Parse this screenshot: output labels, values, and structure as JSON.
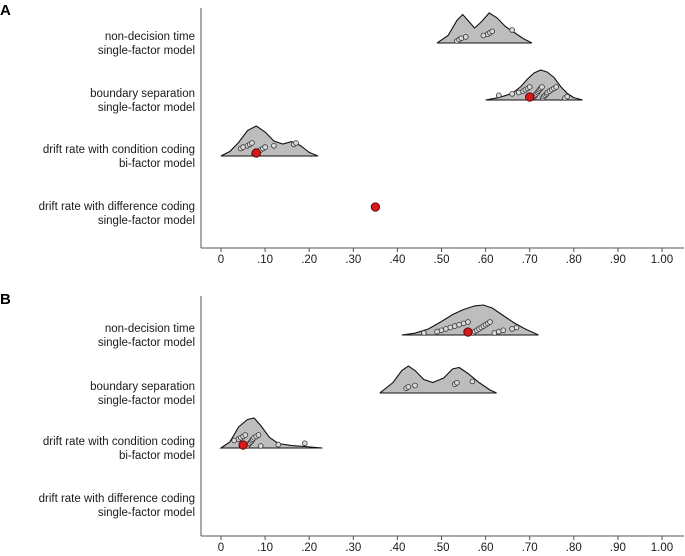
{
  "chart_data": [
    {
      "type": "ridgeline-dot",
      "panel": "A",
      "xlim": [
        -0.02,
        1.04
      ],
      "ticks": [
        0,
        0.1,
        0.2,
        0.3,
        0.4,
        0.5,
        0.6,
        0.7,
        0.8,
        0.9,
        1.0
      ],
      "tick_labels": [
        "0",
        ".10",
        ".20",
        ".30",
        ".40",
        ".50",
        ".60",
        ".70",
        ".80",
        ".90",
        "1.00"
      ],
      "rows": [
        {
          "label_1": "non-decision time",
          "label_2": "single-factor model",
          "density": [
            [
              0.49,
              0
            ],
            [
              0.515,
              0.25
            ],
            [
              0.535,
              0.75
            ],
            [
              0.548,
              0.95
            ],
            [
              0.56,
              0.75
            ],
            [
              0.575,
              0.5
            ],
            [
              0.59,
              0.7
            ],
            [
              0.608,
              1.0
            ],
            [
              0.625,
              0.85
            ],
            [
              0.645,
              0.55
            ],
            [
              0.665,
              0.35
            ],
            [
              0.685,
              0.15
            ],
            [
              0.705,
              0
            ]
          ],
          "points": [
            0.535,
            0.54,
            0.545,
            0.555,
            0.595,
            0.605,
            0.61,
            0.615,
            0.66
          ],
          "highlight": null
        },
        {
          "label_1": "boundary separation",
          "label_2": "single-factor model",
          "density": [
            [
              0.6,
              0
            ],
            [
              0.63,
              0.08
            ],
            [
              0.66,
              0.22
            ],
            [
              0.68,
              0.45
            ],
            [
              0.695,
              0.7
            ],
            [
              0.71,
              0.9
            ],
            [
              0.725,
              1.0
            ],
            [
              0.74,
              0.93
            ],
            [
              0.755,
              0.75
            ],
            [
              0.77,
              0.45
            ],
            [
              0.785,
              0.22
            ],
            [
              0.8,
              0.08
            ],
            [
              0.82,
              0
            ]
          ],
          "points": [
            0.63,
            0.66,
            0.675,
            0.685,
            0.69,
            0.695,
            0.7,
            0.705,
            0.71,
            0.712,
            0.715,
            0.718,
            0.72,
            0.722,
            0.725,
            0.728,
            0.73,
            0.732,
            0.735,
            0.738,
            0.74,
            0.745,
            0.75,
            0.755,
            0.76,
            0.78,
            0.785
          ],
          "highlight": 0.7
        },
        {
          "label_1": "drift rate with condition coding",
          "label_2": "bi-factor model",
          "density": [
            [
              0.0,
              0
            ],
            [
              0.02,
              0.15
            ],
            [
              0.04,
              0.45
            ],
            [
              0.06,
              0.85
            ],
            [
              0.08,
              1.0
            ],
            [
              0.1,
              0.8
            ],
            [
              0.12,
              0.5
            ],
            [
              0.14,
              0.4
            ],
            [
              0.16,
              0.48
            ],
            [
              0.18,
              0.35
            ],
            [
              0.2,
              0.12
            ],
            [
              0.22,
              0
            ]
          ],
          "points": [
            0.045,
            0.05,
            0.06,
            0.065,
            0.07,
            0.075,
            0.08,
            0.085,
            0.09,
            0.095,
            0.1,
            0.12,
            0.165,
            0.17
          ],
          "highlight": 0.08
        },
        {
          "label_1": "drift rate with difference coding",
          "label_2": "single-factor model",
          "density": [],
          "points": [],
          "highlight": 0.35
        }
      ]
    },
    {
      "type": "ridgeline-dot",
      "panel": "B",
      "xlim": [
        -0.02,
        1.04
      ],
      "ticks": [
        0,
        0.1,
        0.2,
        0.3,
        0.4,
        0.5,
        0.6,
        0.7,
        0.8,
        0.9,
        1.0
      ],
      "tick_labels": [
        "0",
        ".10",
        ".20",
        ".30",
        ".40",
        ".50",
        ".60",
        ".70",
        ".80",
        ".90",
        "1.00"
      ],
      "rows": [
        {
          "label_1": "non-decision time",
          "label_2": "single-factor model",
          "density": [
            [
              0.41,
              0
            ],
            [
              0.44,
              0.06
            ],
            [
              0.47,
              0.2
            ],
            [
              0.5,
              0.45
            ],
            [
              0.525,
              0.68
            ],
            [
              0.55,
              0.85
            ],
            [
              0.575,
              0.97
            ],
            [
              0.595,
              1.0
            ],
            [
              0.615,
              0.9
            ],
            [
              0.64,
              0.65
            ],
            [
              0.665,
              0.4
            ],
            [
              0.69,
              0.2
            ],
            [
              0.72,
              0
            ]
          ],
          "points": [
            0.46,
            0.49,
            0.5,
            0.51,
            0.52,
            0.53,
            0.54,
            0.55,
            0.56,
            0.57,
            0.575,
            0.58,
            0.585,
            0.59,
            0.595,
            0.6,
            0.605,
            0.61,
            0.62,
            0.63,
            0.64,
            0.66,
            0.67
          ],
          "highlight": 0.56
        },
        {
          "label_1": "boundary separation",
          "label_2": "single-factor model",
          "density": [
            [
              0.36,
              0
            ],
            [
              0.39,
              0.35
            ],
            [
              0.41,
              0.75
            ],
            [
              0.425,
              0.9
            ],
            [
              0.44,
              0.75
            ],
            [
              0.46,
              0.45
            ],
            [
              0.48,
              0.35
            ],
            [
              0.505,
              0.5
            ],
            [
              0.525,
              0.8
            ],
            [
              0.54,
              0.85
            ],
            [
              0.56,
              0.65
            ],
            [
              0.585,
              0.35
            ],
            [
              0.61,
              0.1
            ],
            [
              0.625,
              0
            ]
          ],
          "points": [
            0.42,
            0.425,
            0.44,
            0.53,
            0.535,
            0.57
          ],
          "highlight": null
        },
        {
          "label_1": "drift rate with condition coding",
          "label_2": "bi-factor model",
          "density": [
            [
              0.0,
              0
            ],
            [
              0.02,
              0.2
            ],
            [
              0.04,
              0.7
            ],
            [
              0.06,
              0.95
            ],
            [
              0.075,
              1.0
            ],
            [
              0.09,
              0.75
            ],
            [
              0.11,
              0.35
            ],
            [
              0.13,
              0.15
            ],
            [
              0.16,
              0.08
            ],
            [
              0.19,
              0.05
            ],
            [
              0.23,
              0
            ]
          ],
          "points": [
            0.03,
            0.04,
            0.045,
            0.05,
            0.055,
            0.06,
            0.062,
            0.065,
            0.068,
            0.07,
            0.072,
            0.075,
            0.08,
            0.085,
            0.09,
            0.13,
            0.19
          ],
          "highlight": 0.05
        },
        {
          "label_1": "drift rate with difference coding",
          "label_2": "single-factor model",
          "density": [],
          "points": [],
          "highlight": null
        }
      ]
    }
  ]
}
